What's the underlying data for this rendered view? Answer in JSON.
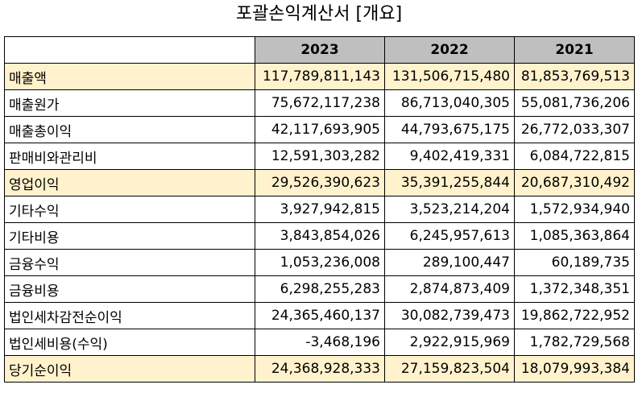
{
  "title": "포괄손익계산서 [개요]",
  "colors": {
    "header_bg": "#bfbfbf",
    "highlight_bg": "#fff2cc",
    "border": "#000000"
  },
  "table": {
    "headers": [
      "",
      "2023",
      "2022",
      "2021"
    ],
    "rows": [
      {
        "label": "매출액",
        "values": [
          "117,789,811,143",
          "131,506,715,480",
          "81,853,769,513"
        ],
        "highlight": true
      },
      {
        "label": "매출원가",
        "values": [
          "75,672,117,238",
          "86,713,040,305",
          "55,081,736,206"
        ],
        "highlight": false
      },
      {
        "label": "매출총이익",
        "values": [
          "42,117,693,905",
          "44,793,675,175",
          "26,772,033,307"
        ],
        "highlight": false
      },
      {
        "label": "판매비와관리비",
        "values": [
          "12,591,303,282",
          "9,402,419,331",
          "6,084,722,815"
        ],
        "highlight": false
      },
      {
        "label": "영업이익",
        "values": [
          "29,526,390,623",
          "35,391,255,844",
          "20,687,310,492"
        ],
        "highlight": true
      },
      {
        "label": "기타수익",
        "values": [
          "3,927,942,815",
          "3,523,214,204",
          "1,572,934,940"
        ],
        "highlight": false
      },
      {
        "label": "기타비용",
        "values": [
          "3,843,854,026",
          "6,245,957,613",
          "1,085,363,864"
        ],
        "highlight": false
      },
      {
        "label": "금융수익",
        "values": [
          "1,053,236,008",
          "289,100,447",
          "60,189,735"
        ],
        "highlight": false
      },
      {
        "label": "금융비용",
        "values": [
          "6,298,255,283",
          "2,874,873,409",
          "1,372,348,351"
        ],
        "highlight": false
      },
      {
        "label": "법인세차감전순이익",
        "values": [
          "24,365,460,137",
          "30,082,739,473",
          "19,862,722,952"
        ],
        "highlight": false
      },
      {
        "label": "법인세비용(수익)",
        "values": [
          "-3,468,196",
          "2,922,915,969",
          "1,782,729,568"
        ],
        "highlight": false
      },
      {
        "label": "당기순이익",
        "values": [
          "24,368,928,333",
          "27,159,823,504",
          "18,079,993,384"
        ],
        "highlight": true
      }
    ]
  }
}
